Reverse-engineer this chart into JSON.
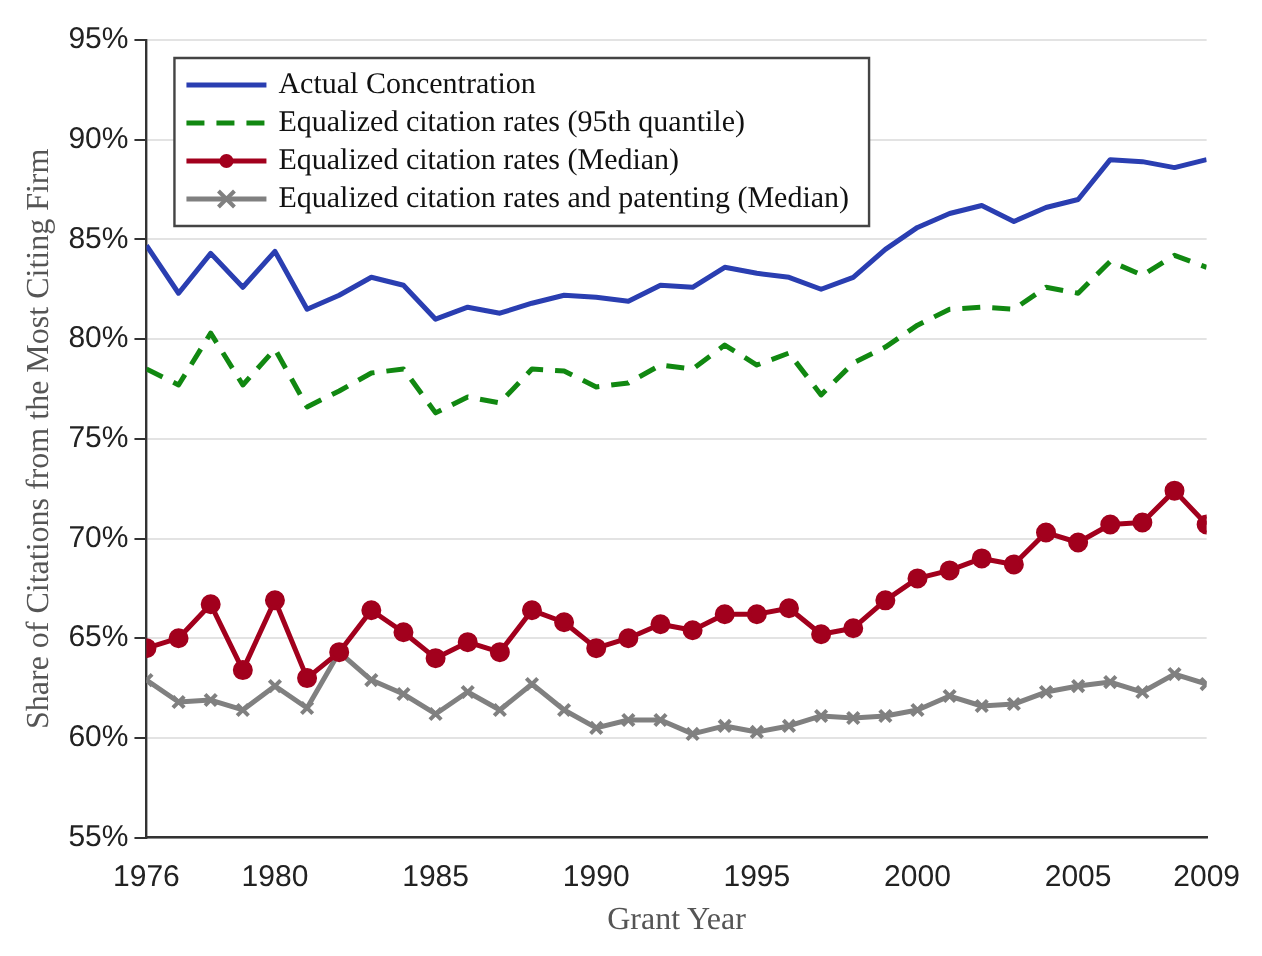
{
  "chart_data": {
    "type": "line",
    "xlabel": "Grant Year",
    "ylabel": "Share of Citations from the Most Citing Firm",
    "x": [
      1976,
      1977,
      1978,
      1979,
      1980,
      1981,
      1982,
      1983,
      1984,
      1985,
      1986,
      1987,
      1988,
      1989,
      1990,
      1991,
      1992,
      1993,
      1994,
      1995,
      1996,
      1997,
      1998,
      1999,
      2000,
      2001,
      2002,
      2003,
      2004,
      2005,
      2006,
      2007,
      2008,
      2009
    ],
    "series": [
      {
        "name": "Actual Concentration",
        "color": "#2a3eb1",
        "marker": "none",
        "line_style": "solid",
        "values": [
          84.7,
          82.3,
          84.3,
          82.6,
          84.4,
          81.5,
          82.2,
          83.1,
          82.7,
          81.0,
          81.6,
          81.3,
          81.8,
          82.2,
          82.1,
          81.9,
          82.7,
          82.6,
          83.6,
          83.3,
          83.1,
          82.5,
          83.1,
          84.5,
          85.6,
          86.3,
          86.7,
          85.9,
          86.6,
          87.0,
          89.0,
          88.9,
          88.6,
          89.0
        ]
      },
      {
        "name": "Equalized citation rates (95th quantile)",
        "color": "#118811",
        "marker": "none",
        "line_style": "dashed",
        "values": [
          78.5,
          77.7,
          80.3,
          77.7,
          79.5,
          76.6,
          77.4,
          78.3,
          78.5,
          76.3,
          77.1,
          76.8,
          78.5,
          78.4,
          77.6,
          77.8,
          78.7,
          78.5,
          79.7,
          78.7,
          79.3,
          77.2,
          78.8,
          79.6,
          80.7,
          81.5,
          81.6,
          81.5,
          82.6,
          82.3,
          83.9,
          83.2,
          84.2,
          83.6
        ]
      },
      {
        "name": "Equalized citation rates (Median)",
        "color": "#a2001d",
        "marker": "circle",
        "line_style": "solid",
        "values": [
          64.5,
          65.0,
          66.7,
          63.4,
          66.9,
          63.0,
          64.3,
          66.4,
          65.3,
          64.0,
          64.8,
          64.3,
          66.4,
          65.8,
          64.5,
          65.0,
          65.7,
          65.4,
          66.2,
          66.2,
          66.5,
          65.2,
          65.5,
          66.9,
          68.0,
          68.4,
          69.0,
          68.7,
          70.3,
          69.8,
          70.7,
          70.8,
          72.4,
          70.7
        ]
      },
      {
        "name": "Equalized citation rates and patenting (Median)",
        "color": "#808080",
        "marker": "cross",
        "line_style": "solid",
        "values": [
          62.9,
          61.8,
          61.9,
          61.4,
          62.6,
          61.5,
          64.3,
          62.9,
          62.2,
          61.2,
          62.3,
          61.4,
          62.7,
          61.4,
          60.5,
          60.9,
          60.9,
          60.2,
          60.6,
          60.3,
          60.6,
          61.1,
          61.0,
          61.1,
          61.4,
          62.1,
          61.6,
          61.7,
          62.3,
          62.6,
          62.8,
          62.3,
          63.2,
          62.7
        ]
      }
    ],
    "xlim": [
      1976,
      2009
    ],
    "xticks": [
      1976,
      1980,
      1985,
      1990,
      1995,
      2000,
      2005,
      2009
    ],
    "ylim": [
      55,
      95
    ],
    "yticks": [
      {
        "value": 55,
        "label": "55%"
      },
      {
        "value": 60,
        "label": "60%"
      },
      {
        "value": 65,
        "label": "65%"
      },
      {
        "value": 70,
        "label": "70%"
      },
      {
        "value": 75,
        "label": "75%"
      },
      {
        "value": 80,
        "label": "80%"
      },
      {
        "value": 85,
        "label": "85%"
      },
      {
        "value": 90,
        "label": "90%"
      },
      {
        "value": 95,
        "label": "95%"
      }
    ],
    "grid": "y",
    "legend": "top left"
  }
}
